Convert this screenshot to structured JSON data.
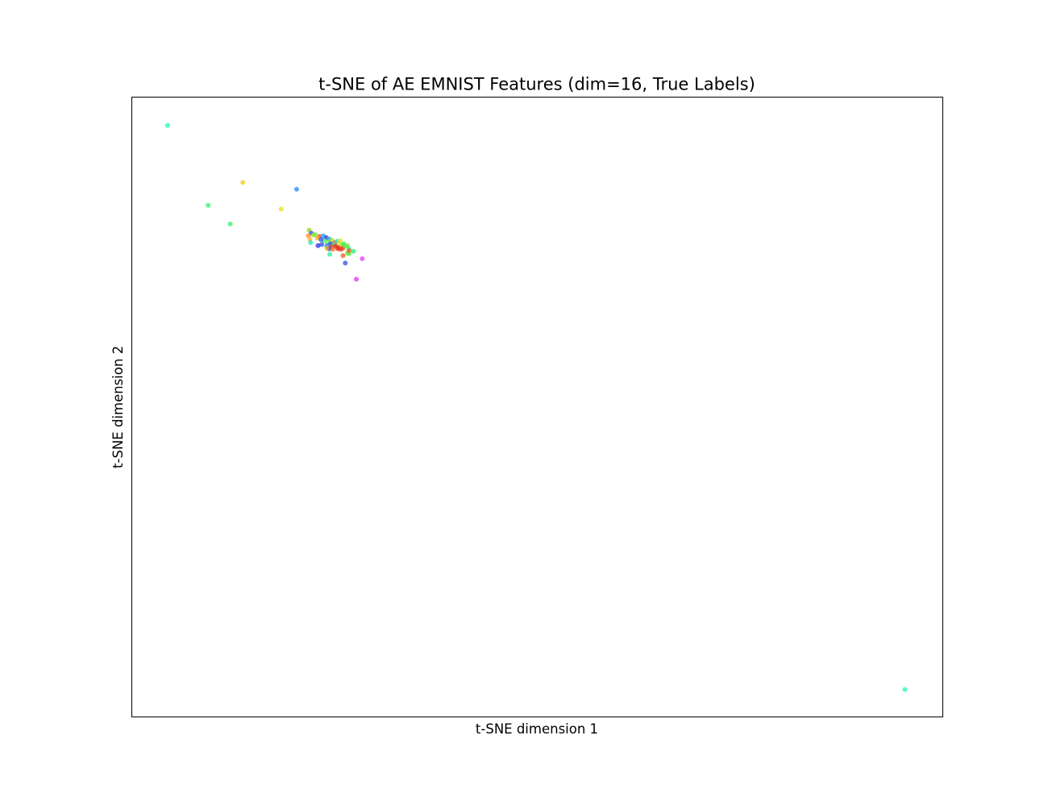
{
  "chart_data": {
    "type": "scatter",
    "title": "t-SNE of AE EMNIST Features (dim=16, True Labels)",
    "xlabel": "t-SNE dimension 1",
    "ylabel": "t-SNE dimension 2",
    "xlim": [
      -10,
      100
    ],
    "ylim": [
      -100,
      0
    ],
    "grid": false,
    "legend": "none",
    "ticks_visible": false,
    "marker_alpha": 0.75,
    "points": [
      {
        "x": -5.2,
        "y": -4.5,
        "color": "#1dfcb0"
      },
      {
        "x": 5.0,
        "y": -13.7,
        "color": "#f7c520"
      },
      {
        "x": 12.3,
        "y": -14.8,
        "color": "#1f8cf5"
      },
      {
        "x": 0.3,
        "y": -17.4,
        "color": "#2cf56a"
      },
      {
        "x": 10.2,
        "y": -18.0,
        "color": "#ecdf1a"
      },
      {
        "x": 3.3,
        "y": -20.4,
        "color": "#35f264"
      },
      {
        "x": 14.0,
        "y": -21.4,
        "color": "#8fd61a"
      },
      {
        "x": 14.3,
        "y": -21.9,
        "color": "#2a4ce8"
      },
      {
        "x": 14.6,
        "y": -22.2,
        "color": "#c0e020"
      },
      {
        "x": 13.9,
        "y": -22.3,
        "color": "#ff8c1a"
      },
      {
        "x": 14.8,
        "y": -22.1,
        "color": "#5ff040"
      },
      {
        "x": 15.4,
        "y": -22.4,
        "color": "#f44a2a"
      },
      {
        "x": 15.9,
        "y": -22.3,
        "color": "#1aa8f0"
      },
      {
        "x": 16.3,
        "y": -22.6,
        "color": "#2f3ae6"
      },
      {
        "x": 16.7,
        "y": -22.8,
        "color": "#1e9cf2"
      },
      {
        "x": 15.1,
        "y": -22.7,
        "color": "#f7b020"
      },
      {
        "x": 14.1,
        "y": -22.9,
        "color": "#ffb020"
      },
      {
        "x": 14.2,
        "y": -23.4,
        "color": "#22e8c0"
      },
      {
        "x": 16.0,
        "y": -23.1,
        "color": "#3cf070"
      },
      {
        "x": 16.5,
        "y": -23.3,
        "color": "#70f040"
      },
      {
        "x": 17.1,
        "y": -23.0,
        "color": "#a0e030"
      },
      {
        "x": 17.5,
        "y": -23.4,
        "color": "#ff5030"
      },
      {
        "x": 16.9,
        "y": -23.6,
        "color": "#2a40e8"
      },
      {
        "x": 17.8,
        "y": -23.2,
        "color": "#20d8e0"
      },
      {
        "x": 18.1,
        "y": -23.5,
        "color": "#e8e020"
      },
      {
        "x": 17.4,
        "y": -23.8,
        "color": "#40f060"
      },
      {
        "x": 16.4,
        "y": -23.9,
        "color": "#1a7cf0"
      },
      {
        "x": 15.7,
        "y": -23.7,
        "color": "#304ae4"
      },
      {
        "x": 17.0,
        "y": -24.1,
        "color": "#ff3020"
      },
      {
        "x": 17.6,
        "y": -24.0,
        "color": "#e02010"
      },
      {
        "x": 18.0,
        "y": -24.2,
        "color": "#ff2a10"
      },
      {
        "x": 18.5,
        "y": -23.8,
        "color": "#7ae830"
      },
      {
        "x": 18.6,
        "y": -24.3,
        "color": "#ff4020"
      },
      {
        "x": 18.3,
        "y": -24.5,
        "color": "#e63a18"
      },
      {
        "x": 17.9,
        "y": -24.4,
        "color": "#f03010"
      },
      {
        "x": 18.7,
        "y": -23.6,
        "color": "#36ee5a"
      },
      {
        "x": 18.9,
        "y": -24.0,
        "color": "#50f050"
      },
      {
        "x": 19.2,
        "y": -23.9,
        "color": "#88e030"
      },
      {
        "x": 19.4,
        "y": -24.4,
        "color": "#30e880"
      },
      {
        "x": 20.0,
        "y": -24.8,
        "color": "#20f070"
      },
      {
        "x": 16.7,
        "y": -24.4,
        "color": "#1f3fe6"
      },
      {
        "x": 15.2,
        "y": -23.9,
        "color": "#2a32e0"
      },
      {
        "x": 16.4,
        "y": -24.3,
        "color": "#e8b020"
      },
      {
        "x": 17.2,
        "y": -24.5,
        "color": "#ff7020"
      },
      {
        "x": 18.2,
        "y": -23.1,
        "color": "#d8e818"
      },
      {
        "x": 16.8,
        "y": -25.3,
        "color": "#1ef0a0"
      },
      {
        "x": 15.6,
        "y": -22.9,
        "color": "#3050f0"
      },
      {
        "x": 19.4,
        "y": -25.2,
        "color": "#50f040"
      },
      {
        "x": 18.6,
        "y": -25.5,
        "color": "#ff5a20"
      },
      {
        "x": 18.9,
        "y": -26.7,
        "color": "#2f52e8"
      },
      {
        "x": 19.2,
        "y": -25.1,
        "color": "#60e838"
      },
      {
        "x": 19.4,
        "y": -24.7,
        "color": "#f46020"
      },
      {
        "x": 21.2,
        "y": -26.0,
        "color": "#e23cf4"
      },
      {
        "x": 20.4,
        "y": -29.3,
        "color": "#dc30f2"
      },
      {
        "x": 94.8,
        "y": -95.5,
        "color": "#1dfcb0"
      }
    ]
  }
}
